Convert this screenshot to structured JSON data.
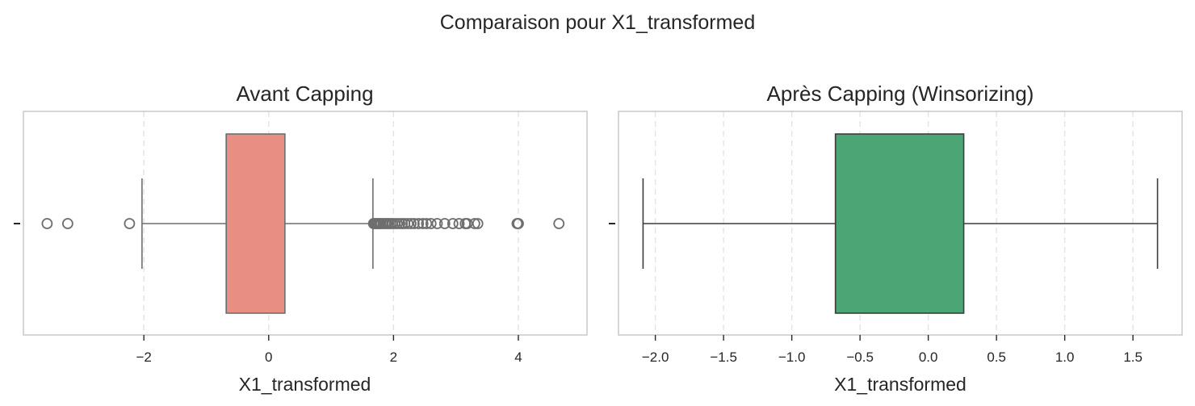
{
  "figure": {
    "suptitle": "Comparaison pour X1_transformed"
  },
  "chart_data": [
    {
      "type": "box",
      "title": "Avant Capping",
      "xlabel": "X1_transformed",
      "ylabel": "",
      "xlim": [
        -3.93,
        5.1
      ],
      "xticks": [
        -2,
        0,
        2,
        4
      ],
      "xtick_labels": [
        "−2",
        "0",
        "2",
        "4"
      ],
      "grid": "x-dashed",
      "color": "#E88E83",
      "stats": {
        "whisker_low": -2.03,
        "q1": -0.68,
        "median": -0.68,
        "q3": 0.26,
        "whisker_high": 1.67
      },
      "outliers": [
        -3.55,
        -3.22,
        -2.23,
        1.68,
        1.7,
        1.72,
        1.74,
        1.76,
        1.78,
        1.8,
        1.83,
        1.86,
        1.89,
        1.92,
        1.95,
        1.98,
        2.02,
        2.06,
        2.1,
        2.14,
        2.18,
        2.23,
        2.28,
        2.33,
        2.4,
        2.47,
        2.53,
        2.6,
        2.7,
        2.82,
        2.95,
        3.05,
        3.15,
        3.18,
        3.3,
        3.35,
        3.98,
        4.0,
        4.65
      ]
    },
    {
      "type": "box",
      "title": "Après Capping (Winsorizing)",
      "xlabel": "X1_transformed",
      "ylabel": "",
      "xlim": [
        -2.27,
        1.86
      ],
      "xticks": [
        -2.0,
        -1.5,
        -1.0,
        -0.5,
        0.0,
        0.5,
        1.0,
        1.5
      ],
      "xtick_labels": [
        "−2.0",
        "−1.5",
        "−1.0",
        "−0.5",
        "0.0",
        "0.5",
        "1.0",
        "1.5"
      ],
      "grid": "x-dashed",
      "color": "#4BA574",
      "stats": {
        "whisker_low": -2.09,
        "q1": -0.68,
        "median": -0.68,
        "q3": 0.26,
        "whisker_high": 1.68
      },
      "outliers": []
    }
  ]
}
